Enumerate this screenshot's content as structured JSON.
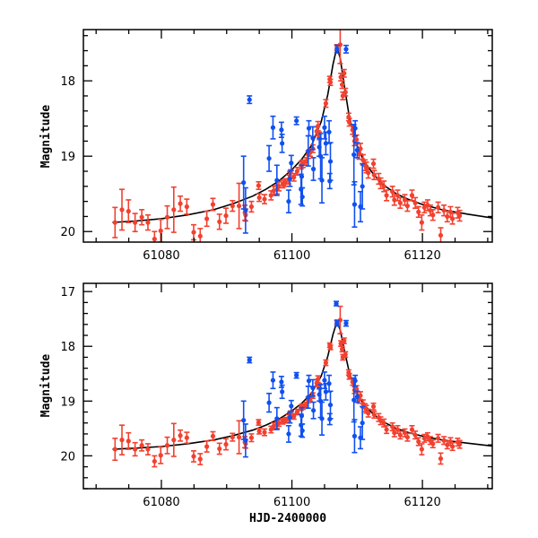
{
  "chart_data": [
    {
      "type": "scatter",
      "panel": "top",
      "title": "",
      "xlabel": "",
      "ylabel": "Magnitude",
      "xlim": [
        61068.05,
        61130.7
      ],
      "ylim": [
        20.14,
        17.32
      ],
      "y_inverted": true,
      "xticks_major": [
        61080,
        61100,
        61120
      ],
      "xtick_labels": [
        "61080",
        "61100",
        "61120"
      ],
      "yticks_major": [
        18,
        19,
        20
      ],
      "ytick_labels": [
        "18",
        "19",
        "20"
      ],
      "grid": false,
      "legend": "none",
      "series_ref": "shared"
    },
    {
      "type": "scatter",
      "panel": "bottom",
      "title": "",
      "xlabel": "HJD-2400000",
      "ylabel": "Magnitude",
      "xlim": [
        61068.05,
        61130.7
      ],
      "ylim": [
        20.6,
        16.85
      ],
      "y_inverted": true,
      "xticks_major": [
        61080,
        61100,
        61120
      ],
      "xtick_labels": [
        "61080",
        "61100",
        "61120"
      ],
      "yticks_major": [
        17,
        18,
        19,
        20
      ],
      "ytick_labels": [
        "17",
        "18",
        "19",
        "20"
      ],
      "grid": false,
      "legend": "none",
      "series_ref": "shared"
    }
  ],
  "shared": {
    "colors": {
      "red": "#f2402f",
      "blue": "#1050f0",
      "model": "#000000"
    },
    "series": [
      {
        "name": "red",
        "points": [
          [
            61072.9,
            19.88,
            0.2
          ],
          [
            61073.96,
            19.71,
            0.27
          ],
          [
            61074.96,
            19.73,
            0.15
          ],
          [
            61075.97,
            19.88,
            0.12
          ],
          [
            61077.0,
            19.81,
            0.1
          ],
          [
            61077.94,
            19.88,
            0.1
          ],
          [
            61078.95,
            20.1,
            0.1
          ],
          [
            61079.9,
            19.99,
            0.15
          ],
          [
            61080.9,
            19.81,
            0.15
          ],
          [
            61081.9,
            19.71,
            0.3
          ],
          [
            61082.9,
            19.63,
            0.1
          ],
          [
            61083.9,
            19.67,
            0.1
          ],
          [
            61084.95,
            20.01,
            0.1
          ],
          [
            61085.95,
            20.06,
            0.1
          ],
          [
            61086.96,
            19.83,
            0.1
          ],
          [
            61087.9,
            19.64,
            0.08
          ],
          [
            61088.9,
            19.87,
            0.1
          ],
          [
            61089.9,
            19.79,
            0.1
          ],
          [
            61090.9,
            19.66,
            0.07
          ],
          [
            61091.9,
            19.66,
            0.3
          ],
          [
            61092.8,
            19.75,
            0.1
          ],
          [
            61092.9,
            19.78,
            0.08
          ],
          [
            61093.8,
            19.67,
            0.07
          ],
          [
            61094.9,
            19.39,
            0.05
          ],
          [
            61095.0,
            19.55,
            0.05
          ],
          [
            61095.8,
            19.57,
            0.06
          ],
          [
            61096.8,
            19.52,
            0.06
          ],
          [
            61097.2,
            19.46,
            0.06
          ],
          [
            61097.7,
            19.44,
            0.06
          ],
          [
            61098.0,
            19.4,
            0.06
          ],
          [
            61098.6,
            19.37,
            0.05
          ],
          [
            61099.0,
            19.35,
            0.05
          ],
          [
            61099.5,
            19.31,
            0.06
          ],
          [
            61099.8,
            19.22,
            0.04
          ],
          [
            61100.3,
            19.28,
            0.05
          ],
          [
            61100.8,
            19.2,
            0.05
          ],
          [
            61101.4,
            19.12,
            0.05
          ],
          [
            61101.7,
            19.1,
            0.05
          ],
          [
            61102.2,
            19.07,
            0.05
          ],
          [
            61102.5,
            18.98,
            0.05
          ],
          [
            61102.8,
            18.95,
            0.05
          ],
          [
            61103.2,
            18.9,
            0.05
          ],
          [
            61103.8,
            18.67,
            0.06
          ],
          [
            61104.0,
            18.6,
            0.06
          ],
          [
            61104.2,
            18.73,
            0.05
          ],
          [
            61105.2,
            18.3,
            0.05
          ],
          [
            61105.8,
            17.98,
            0.04
          ],
          [
            61105.9,
            18.02,
            0.04
          ],
          [
            61106.9,
            17.56,
            0.04
          ],
          [
            61107.4,
            17.52,
            0.25
          ],
          [
            61107.5,
            17.95,
            0.05
          ],
          [
            61107.7,
            18.05,
            0.05
          ],
          [
            61107.8,
            18.2,
            0.05
          ],
          [
            61108.0,
            17.9,
            0.05
          ],
          [
            61108.2,
            18.15,
            0.05
          ],
          [
            61108.7,
            18.48,
            0.05
          ],
          [
            61108.8,
            18.55,
            0.05
          ],
          [
            61109.3,
            18.65,
            0.06
          ],
          [
            61109.6,
            18.8,
            0.06
          ],
          [
            61109.9,
            18.78,
            0.06
          ],
          [
            61110.3,
            18.97,
            0.07
          ],
          [
            61110.5,
            18.9,
            0.07
          ],
          [
            61110.9,
            19.05,
            0.07
          ],
          [
            61111.2,
            19.12,
            0.07
          ],
          [
            61111.4,
            19.15,
            0.07
          ],
          [
            61111.7,
            19.22,
            0.07
          ],
          [
            61112.5,
            19.1,
            0.06
          ],
          [
            61112.6,
            19.25,
            0.06
          ],
          [
            61113.3,
            19.3,
            0.07
          ],
          [
            61113.6,
            19.36,
            0.07
          ],
          [
            61114.1,
            19.4,
            0.07
          ],
          [
            61114.5,
            19.52,
            0.07
          ],
          [
            61115.4,
            19.47,
            0.07
          ],
          [
            61115.7,
            19.58,
            0.07
          ],
          [
            61116.2,
            19.52,
            0.07
          ],
          [
            61116.6,
            19.62,
            0.07
          ],
          [
            61117.3,
            19.58,
            0.07
          ],
          [
            61117.7,
            19.66,
            0.07
          ],
          [
            61118.4,
            19.52,
            0.07
          ],
          [
            61118.9,
            19.62,
            0.07
          ],
          [
            61119.4,
            19.74,
            0.07
          ],
          [
            61119.9,
            19.88,
            0.1
          ],
          [
            61120.3,
            19.68,
            0.07
          ],
          [
            61120.8,
            19.65,
            0.07
          ],
          [
            61121.2,
            19.72,
            0.07
          ],
          [
            61121.6,
            19.78,
            0.07
          ],
          [
            61122.4,
            19.68,
            0.07
          ],
          [
            61122.8,
            20.05,
            0.1
          ],
          [
            61123.3,
            19.72,
            0.07
          ],
          [
            61123.8,
            19.8,
            0.07
          ],
          [
            61124.3,
            19.74,
            0.07
          ],
          [
            61124.6,
            19.83,
            0.07
          ],
          [
            61125.4,
            19.75,
            0.07
          ],
          [
            61125.7,
            19.79,
            0.07
          ]
        ]
      },
      {
        "name": "blue",
        "points": [
          [
            61092.6,
            19.35,
            0.35
          ],
          [
            61092.9,
            19.72,
            0.3
          ],
          [
            61093.5,
            18.25,
            0.05
          ],
          [
            61096.5,
            19.03,
            0.17
          ],
          [
            61097.1,
            18.62,
            0.15
          ],
          [
            61097.7,
            19.32,
            0.2
          ],
          [
            61098.4,
            18.65,
            0.1
          ],
          [
            61098.5,
            18.83,
            0.12
          ],
          [
            61099.5,
            19.6,
            0.15
          ],
          [
            61099.7,
            19.3,
            0.1
          ],
          [
            61099.9,
            19.09,
            0.1
          ],
          [
            61100.7,
            18.53,
            0.05
          ],
          [
            61101.4,
            19.44,
            0.2
          ],
          [
            61101.5,
            19.27,
            0.15
          ],
          [
            61101.6,
            19.54,
            0.12
          ],
          [
            61102.5,
            18.93,
            0.2
          ],
          [
            61102.6,
            18.63,
            0.1
          ],
          [
            61103.2,
            18.76,
            0.15
          ],
          [
            61103.3,
            19.17,
            0.15
          ],
          [
            61104.2,
            18.88,
            0.12
          ],
          [
            61104.4,
            19.0,
            0.3
          ],
          [
            61104.6,
            19.32,
            0.3
          ],
          [
            61105.0,
            18.62,
            0.15
          ],
          [
            61105.2,
            18.83,
            0.15
          ],
          [
            61105.7,
            18.68,
            0.15
          ],
          [
            61105.8,
            19.33,
            0.1
          ],
          [
            61105.9,
            19.07,
            0.25
          ],
          [
            61106.8,
            17.22,
            0.04
          ],
          [
            61106.9,
            17.58,
            0.05
          ],
          [
            61108.3,
            17.58,
            0.05
          ],
          [
            61109.5,
            18.98,
            0.4
          ],
          [
            61109.6,
            19.64,
            0.3
          ],
          [
            61109.7,
            18.63,
            0.1
          ],
          [
            61110.0,
            18.92,
            0.1
          ],
          [
            61110.5,
            19.67,
            0.2
          ],
          [
            61110.8,
            19.4,
            0.3
          ]
        ]
      }
    ],
    "model": [
      [
        61072.5,
        19.88
      ],
      [
        61076,
        19.86
      ],
      [
        61080,
        19.83
      ],
      [
        61084,
        19.78
      ],
      [
        61088,
        19.71
      ],
      [
        61091,
        19.63
      ],
      [
        61094,
        19.53
      ],
      [
        61096,
        19.44
      ],
      [
        61098,
        19.33
      ],
      [
        61100,
        19.18
      ],
      [
        61101.5,
        19.04
      ],
      [
        61103,
        18.86
      ],
      [
        61104.5,
        18.54
      ],
      [
        61105.5,
        18.18
      ],
      [
        61106.3,
        17.78
      ],
      [
        61106.9,
        17.55
      ],
      [
        61107.4,
        17.7
      ],
      [
        61108,
        18.05
      ],
      [
        61108.8,
        18.48
      ],
      [
        61109.8,
        18.82
      ],
      [
        61111,
        19.06
      ],
      [
        61112.5,
        19.24
      ],
      [
        61114,
        19.38
      ],
      [
        61116,
        19.5
      ],
      [
        61118,
        19.58
      ],
      [
        61120,
        19.64
      ],
      [
        61123,
        19.71
      ],
      [
        61127,
        19.77
      ],
      [
        61130.7,
        19.82
      ]
    ]
  }
}
